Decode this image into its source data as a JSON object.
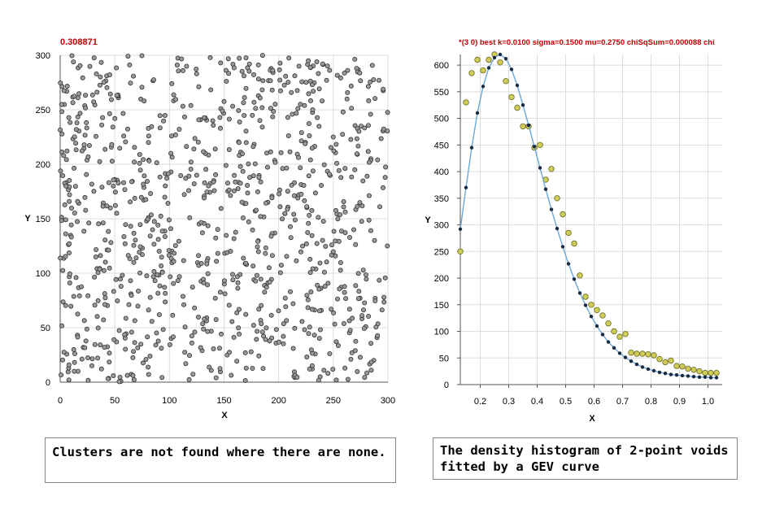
{
  "captions": {
    "left": "Clusters are not found where there are none.",
    "right": "The density histogram of 2-point voids fitted by a GEV curve"
  },
  "colors": {
    "header_red": "#c00000",
    "scatter_fill": "#9a9a9a",
    "hist_fill": "#d0cc5a",
    "fit_line": "#6aa8d8",
    "fit_points": "#1a2a40",
    "grid": "#dddddd"
  },
  "chart_data": [
    {
      "type": "scatter",
      "title": "0.308871",
      "xlabel": "X",
      "ylabel": "Y",
      "xlim": [
        0,
        300
      ],
      "ylim": [
        0,
        300
      ],
      "xticks": [
        "0",
        "50",
        "100",
        "150",
        "200",
        "250",
        "300"
      ],
      "yticks": [
        "0",
        "50",
        "100",
        "150",
        "200",
        "250",
        "300"
      ],
      "grid": true,
      "n_points": 1000,
      "distribution": "uniform random"
    },
    {
      "type": "scatter",
      "title": "*(3 0) best k=0.0100 sigma=0.1500 mu=0.2750 chiSqSum=0.000088 chi",
      "xlabel": "X",
      "ylabel": "Y",
      "xlim": [
        0.13,
        1.05
      ],
      "ylim": [
        0,
        620
      ],
      "xticks": [
        "0.2",
        "0.3",
        "0.4",
        "0.5",
        "0.6",
        "0.7",
        "0.8",
        "0.9",
        "1.0"
      ],
      "yticks": [
        "0",
        "50",
        "100",
        "150",
        "200",
        "250",
        "300",
        "350",
        "400",
        "450",
        "500",
        "550",
        "600"
      ],
      "grid": true,
      "series": [
        {
          "marker": "circle",
          "x": [
            0.13,
            0.15,
            0.17,
            0.19,
            0.21,
            0.23,
            0.25,
            0.27,
            0.29,
            0.31,
            0.33,
            0.35,
            0.37,
            0.39,
            0.41,
            0.43,
            0.45,
            0.47,
            0.49,
            0.51,
            0.53,
            0.55,
            0.57,
            0.59,
            0.61,
            0.63,
            0.65,
            0.67,
            0.69,
            0.71,
            0.73,
            0.75,
            0.77,
            0.79,
            0.81,
            0.83,
            0.85,
            0.87,
            0.89,
            0.91,
            0.93,
            0.95,
            0.97,
            0.99,
            1.01,
            1.03
          ],
          "y": [
            250,
            530,
            585,
            610,
            590,
            610,
            620,
            605,
            570,
            540,
            520,
            485,
            485,
            445,
            450,
            385,
            405,
            350,
            320,
            285,
            265,
            205,
            165,
            150,
            140,
            130,
            115,
            100,
            90,
            95,
            60,
            58,
            58,
            57,
            55,
            48,
            42,
            45,
            35,
            34,
            30,
            28,
            25,
            22,
            22,
            22
          ]
        },
        {
          "marker": "dot-line",
          "x": [
            0.13,
            0.15,
            0.17,
            0.19,
            0.21,
            0.23,
            0.25,
            0.27,
            0.29,
            0.31,
            0.33,
            0.35,
            0.37,
            0.39,
            0.41,
            0.43,
            0.45,
            0.47,
            0.49,
            0.51,
            0.53,
            0.55,
            0.57,
            0.59,
            0.61,
            0.63,
            0.65,
            0.67,
            0.69,
            0.71,
            0.73,
            0.75,
            0.77,
            0.79,
            0.81,
            0.83,
            0.85,
            0.87,
            0.89,
            0.91,
            0.93,
            0.95,
            0.97,
            0.99,
            1.01,
            1.03
          ],
          "y": [
            292,
            370,
            445,
            510,
            560,
            595,
            614,
            620,
            612,
            592,
            562,
            525,
            487,
            447,
            407,
            367,
            329,
            293,
            259,
            227,
            198,
            172,
            149,
            128,
            110,
            94,
            80,
            69,
            59,
            51,
            44,
            38,
            33,
            29,
            26,
            23,
            21,
            19,
            18,
            17,
            16,
            15,
            14,
            14,
            13,
            13
          ]
        }
      ]
    }
  ]
}
